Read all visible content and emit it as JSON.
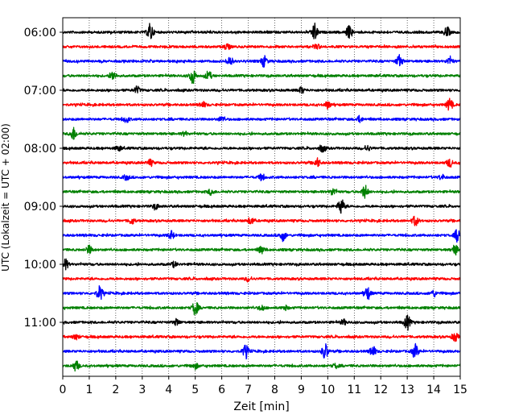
{
  "chart_data": {
    "type": "line",
    "xlabel": "Zeit  [min]",
    "ylabel": "UTC (Lokalzeit = UTC + 02:00)",
    "xlim": [
      0,
      15
    ],
    "x_ticks": [
      0,
      1,
      2,
      3,
      4,
      5,
      6,
      7,
      8,
      9,
      10,
      11,
      12,
      13,
      14,
      15
    ],
    "grid": "vertical dotted at each minute",
    "row_interval_minutes": 15,
    "y_tick_labels": [
      "06:00",
      "07:00",
      "08:00",
      "09:00",
      "10:00",
      "11:00"
    ],
    "y_tick_rows": [
      0,
      4,
      8,
      12,
      16,
      20
    ],
    "colors": [
      "#000000",
      "#ff0000",
      "#0000ff",
      "#008000"
    ],
    "traces": [
      {
        "start": "06:00",
        "color": "#000000",
        "bursts": [
          [
            3.3,
            1.8
          ],
          [
            9.5,
            1.7
          ],
          [
            10.8,
            1.2
          ],
          [
            14.5,
            1.0
          ]
        ]
      },
      {
        "start": "06:15",
        "color": "#ff0000",
        "bursts": [
          [
            6.2,
            0.6
          ],
          [
            9.6,
            0.5
          ]
        ]
      },
      {
        "start": "06:30",
        "color": "#0000ff",
        "bursts": [
          [
            6.3,
            1.0
          ],
          [
            7.6,
            1.1
          ],
          [
            12.7,
            1.2
          ],
          [
            14.6,
            0.8
          ]
        ]
      },
      {
        "start": "06:45",
        "color": "#008000",
        "bursts": [
          [
            1.9,
            0.9
          ],
          [
            4.9,
            1.6
          ],
          [
            5.5,
            0.9
          ]
        ]
      },
      {
        "start": "07:00",
        "color": "#000000",
        "bursts": [
          [
            2.8,
            0.7
          ],
          [
            9.0,
            0.6
          ]
        ]
      },
      {
        "start": "07:15",
        "color": "#ff0000",
        "bursts": [
          [
            5.3,
            0.5
          ],
          [
            10.0,
            0.7
          ],
          [
            14.6,
            1.2
          ]
        ]
      },
      {
        "start": "07:30",
        "color": "#0000ff",
        "bursts": [
          [
            2.4,
            0.6
          ],
          [
            6.0,
            0.5
          ],
          [
            11.2,
            0.6
          ]
        ]
      },
      {
        "start": "07:45",
        "color": "#008000",
        "bursts": [
          [
            0.4,
            1.3
          ],
          [
            4.6,
            0.4
          ]
        ]
      },
      {
        "start": "08:00",
        "color": "#000000",
        "bursts": [
          [
            2.1,
            0.5
          ],
          [
            9.8,
            0.7
          ],
          [
            11.5,
            0.5
          ]
        ]
      },
      {
        "start": "08:15",
        "color": "#ff0000",
        "bursts": [
          [
            3.3,
            0.6
          ],
          [
            9.6,
            0.9
          ],
          [
            14.6,
            0.8
          ]
        ]
      },
      {
        "start": "08:30",
        "color": "#0000ff",
        "bursts": [
          [
            2.4,
            0.5
          ],
          [
            7.5,
            0.6
          ],
          [
            14.3,
            0.5
          ]
        ]
      },
      {
        "start": "08:45",
        "color": "#008000",
        "bursts": [
          [
            5.6,
            0.6
          ],
          [
            10.2,
            0.7
          ],
          [
            11.4,
            1.3
          ]
        ]
      },
      {
        "start": "09:00",
        "color": "#000000",
        "bursts": [
          [
            3.5,
            0.5
          ],
          [
            10.5,
            1.6
          ]
        ]
      },
      {
        "start": "09:15",
        "color": "#ff0000",
        "bursts": [
          [
            2.6,
            0.6
          ],
          [
            7.1,
            0.7
          ],
          [
            13.3,
            1.0
          ]
        ]
      },
      {
        "start": "09:30",
        "color": "#0000ff",
        "bursts": [
          [
            4.1,
            0.8
          ],
          [
            8.3,
            1.1
          ],
          [
            14.9,
            1.3
          ]
        ]
      },
      {
        "start": "09:45",
        "color": "#008000",
        "bursts": [
          [
            1.0,
            0.8
          ],
          [
            7.5,
            0.7
          ],
          [
            14.8,
            1.0
          ]
        ]
      },
      {
        "start": "10:00",
        "color": "#000000",
        "bursts": [
          [
            0.1,
            1.0
          ],
          [
            4.2,
            0.5
          ]
        ]
      },
      {
        "start": "10:15",
        "color": "#ff0000",
        "bursts": [
          [
            7.0,
            0.4
          ]
        ]
      },
      {
        "start": "10:30",
        "color": "#0000ff",
        "bursts": [
          [
            1.4,
            1.5
          ],
          [
            11.5,
            1.3
          ],
          [
            14.0,
            0.6
          ]
        ]
      },
      {
        "start": "10:45",
        "color": "#008000",
        "bursts": [
          [
            5.0,
            1.4
          ],
          [
            7.5,
            0.5
          ],
          [
            8.4,
            0.4
          ]
        ]
      },
      {
        "start": "11:00",
        "color": "#000000",
        "bursts": [
          [
            4.3,
            0.6
          ],
          [
            10.6,
            0.5
          ],
          [
            13.0,
            1.5
          ]
        ]
      },
      {
        "start": "11:15",
        "color": "#ff0000",
        "bursts": [
          [
            0.5,
            0.5
          ],
          [
            14.8,
            0.9
          ]
        ]
      },
      {
        "start": "11:30",
        "color": "#0000ff",
        "bursts": [
          [
            6.9,
            1.3
          ],
          [
            9.9,
            1.6
          ],
          [
            11.7,
            1.0
          ],
          [
            13.3,
            1.4
          ]
        ]
      },
      {
        "start": "11:45",
        "color": "#008000",
        "bursts": [
          [
            0.5,
            1.0
          ],
          [
            5.0,
            0.5
          ],
          [
            10.3,
            0.4
          ]
        ]
      }
    ]
  }
}
